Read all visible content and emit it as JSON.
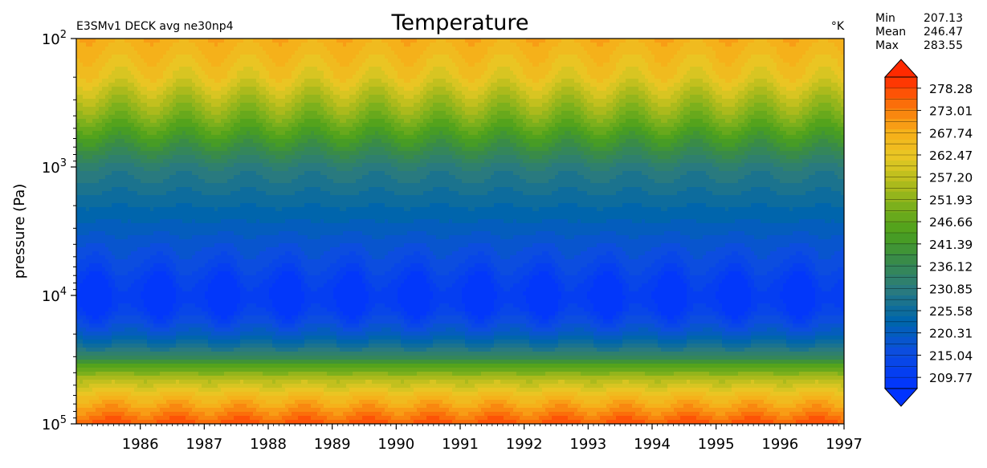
{
  "chart_data": {
    "type": "heatmap",
    "title": "Temperature",
    "subtitle": "E3SMv1 DECK avg ne30np4",
    "units": "°K",
    "ylabel": "pressure (Pa)",
    "xlabel": "",
    "y_scale": "log",
    "ylim": [
      100000,
      100
    ],
    "yticks": [
      100,
      1000,
      10000,
      100000
    ],
    "ytick_labels": [
      {
        "base": "10",
        "exp": "2"
      },
      {
        "base": "10",
        "exp": "3"
      },
      {
        "base": "10",
        "exp": "4"
      },
      {
        "base": "10",
        "exp": "5"
      }
    ],
    "xlim": [
      1985.0,
      1997.0
    ],
    "xtick_labels": [
      "1986",
      "1987",
      "1988",
      "1989",
      "1990",
      "1991",
      "1992",
      "1993",
      "1994",
      "1995",
      "1996",
      "1997"
    ],
    "stats": [
      {
        "label": "Min",
        "value": "207.13"
      },
      {
        "label": "Mean",
        "value": "246.47"
      },
      {
        "label": "Max",
        "value": "283.55"
      }
    ],
    "colorbar": {
      "vmin": 207.13,
      "vmax": 283.55,
      "tick_labels": [
        "278.28",
        "273.01",
        "267.74",
        "262.47",
        "257.20",
        "251.93",
        "246.66",
        "241.39",
        "236.12",
        "230.85",
        "225.58",
        "220.31",
        "215.04",
        "209.77"
      ],
      "extend": "both",
      "under_color": "#0033ff",
      "over_color": "#ff2a00"
    },
    "profile": {
      "pressure": [
        100,
        200,
        400,
        700,
        1000,
        1500,
        2500,
        4000,
        6000,
        8000,
        10000,
        13000,
        16000,
        20000,
        25000,
        30000,
        35000,
        45000,
        60000,
        80000,
        100000
      ],
      "temperature": [
        270,
        264,
        252,
        240,
        232,
        228,
        223,
        218,
        214,
        210,
        208,
        210,
        215,
        220,
        228,
        236,
        246,
        258,
        267,
        274,
        280
      ]
    }
  }
}
